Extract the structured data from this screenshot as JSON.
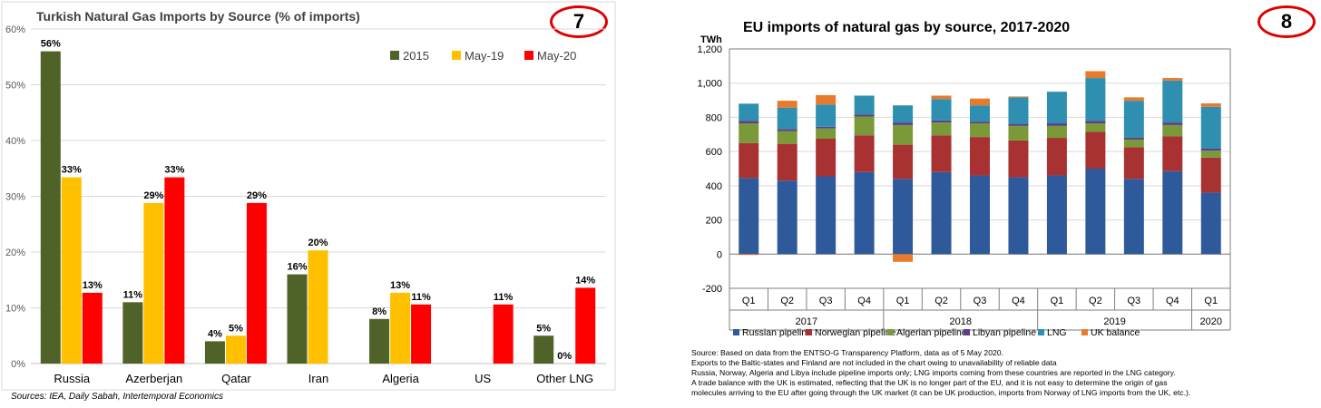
{
  "left_chart": {
    "title": "Turkish Natural Gas Imports by Source (% of imports)",
    "badge": "7",
    "source_note": "Sources: IEA, Daily Sabah, Intertemporal Economics",
    "colors": {
      "2015": "#4f6228",
      "May-19": "#ffc000",
      "May-20": "#ff0000"
    }
  },
  "right_chart": {
    "title": "EU imports of natural gas by source, 2017-2020",
    "badge": "8",
    "unit_label": "TWh",
    "footnotes": [
      "Source: Based on data from the ENTSO-G Transparency Platform, data as of 5 May 2020.",
      "Exports to the Baltic-states and Finland are not included in the chart owing to unavailability of reliable data",
      "Russia, Norway, Algeria and Libya include pipeline imports only; LNG imports coming from these countries are reported in the LNG category.",
      "A trade balance with the UK is estimated, reflecting that the UK is no longer part of the EU, and it is not easy to determine the origin of gas",
      "molecules arriving to the EU after going through the UK market (it can be UK production, imports from Norway of LNG imports from the UK, etc.)."
    ],
    "colors": {
      "Russian pipeline": "#2e5a9c",
      "Norwegian pipeline": "#a83232",
      "Algerian pipeline": "#7a9a3a",
      "Libyan pipeline": "#5b3f8a",
      "LNG": "#2f8fb0",
      "UK balance": "#e87a2c"
    }
  },
  "chart_data": [
    {
      "type": "bar",
      "title": "Turkish Natural Gas Imports by Source (% of imports)",
      "categories": [
        "Russia",
        "Azerberjan",
        "Qatar",
        "Iran",
        "Algeria",
        "US",
        "Other LNG"
      ],
      "series": [
        {
          "name": "2015",
          "values": [
            56,
            11,
            4,
            16,
            8,
            null,
            5
          ],
          "labels": [
            "56%",
            "11%",
            "4%",
            "16%",
            "8%",
            "",
            "5%"
          ]
        },
        {
          "name": "May-19",
          "values": [
            33.4,
            28.8,
            5,
            20.3,
            12.7,
            null,
            0
          ],
          "labels": [
            "33%",
            "29%",
            "5%",
            "20%",
            "13%",
            "",
            "0%"
          ]
        },
        {
          "name": "May-20",
          "values": [
            12.7,
            33.4,
            28.8,
            null,
            10.6,
            10.6,
            13.6
          ],
          "labels": [
            "13%",
            "33%",
            "29%",
            "",
            "11%",
            "11%",
            "14%"
          ]
        }
      ],
      "ylim": [
        0,
        60
      ],
      "yticks": [
        "0%",
        "10%",
        "20%",
        "30%",
        "40%",
        "50%",
        "60%"
      ],
      "grid": true,
      "legend": "top-right"
    },
    {
      "type": "bar",
      "stacked": true,
      "title": "EU imports of natural gas by source, 2017-2020",
      "ylabel": "TWh",
      "categories": [
        "Q1",
        "Q2",
        "Q3",
        "Q4",
        "Q1",
        "Q2",
        "Q3",
        "Q4",
        "Q1",
        "Q2",
        "Q3",
        "Q4",
        "Q1"
      ],
      "year_groups": [
        {
          "label": "2017",
          "span": 4
        },
        {
          "label": "2018",
          "span": 4
        },
        {
          "label": "2019",
          "span": 4
        },
        {
          "label": "2020",
          "span": 1
        }
      ],
      "series": [
        {
          "name": "Russian pipeline",
          "values": [
            445,
            430,
            455,
            480,
            440,
            480,
            460,
            450,
            460,
            500,
            440,
            485,
            360
          ]
        },
        {
          "name": "Norwegian pipeline",
          "values": [
            205,
            215,
            220,
            215,
            200,
            215,
            225,
            215,
            220,
            215,
            185,
            205,
            205
          ]
        },
        {
          "name": "Algerian pipeline",
          "values": [
            115,
            75,
            60,
            110,
            115,
            75,
            80,
            85,
            70,
            50,
            45,
            65,
            40
          ]
        },
        {
          "name": "Libyan pipeline",
          "values": [
            15,
            12,
            10,
            12,
            15,
            12,
            10,
            12,
            15,
            15,
            12,
            15,
            12
          ]
        },
        {
          "name": "LNG",
          "values": [
            100,
            125,
            130,
            110,
            100,
            125,
            95,
            155,
            185,
            250,
            215,
            245,
            245
          ]
        },
        {
          "name": "UK balance",
          "values": [
            -5,
            40,
            55,
            0,
            -45,
            20,
            40,
            5,
            0,
            40,
            20,
            15,
            20
          ]
        }
      ],
      "ylim": [
        -200,
        1200
      ],
      "yticks": [
        "-200",
        "0",
        "200",
        "400",
        "600",
        "800",
        "1,000",
        "1,200"
      ],
      "grid": true,
      "legend": "bottom"
    }
  ]
}
